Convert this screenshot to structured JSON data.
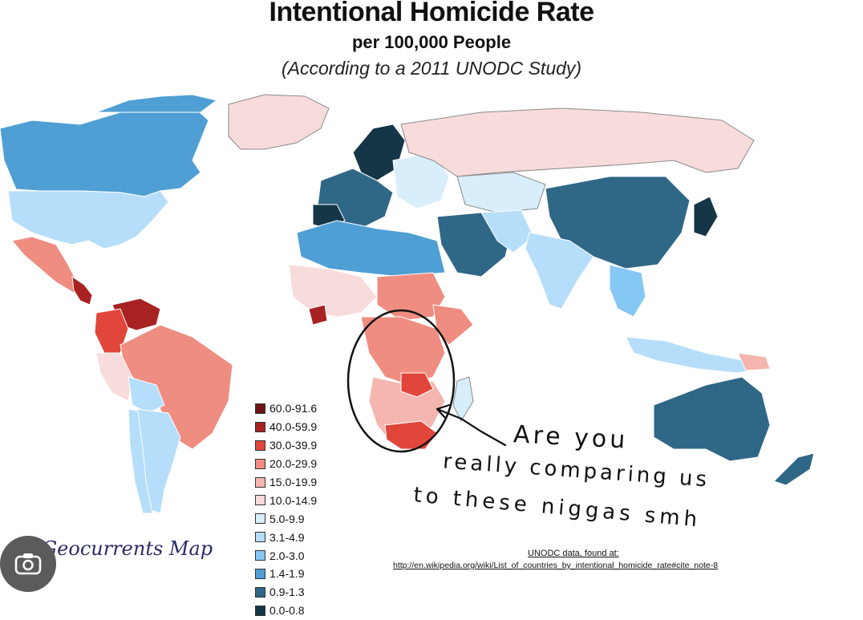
{
  "title": "Intentional Homicide Rate",
  "subtitle": "per 100,000 People",
  "note": "(According to a 2011 UNODC Study)",
  "legend": [
    {
      "label": "60.0-91.6",
      "color": "#6e1212"
    },
    {
      "label": "40.0-59.9",
      "color": "#a82222"
    },
    {
      "label": "30.0-39.9",
      "color": "#e0463a"
    },
    {
      "label": "20.0-29.9",
      "color": "#ee8d80"
    },
    {
      "label": "15.0-19.9",
      "color": "#f4b6ae"
    },
    {
      "label": "10.0-14.9",
      "color": "#f8dcdb"
    },
    {
      "label": "5.0-9.9",
      "color": "#d8eefa"
    },
    {
      "label": "3.1-4.9",
      "color": "#b5defa"
    },
    {
      "label": "2.0-3.0",
      "color": "#86c8f4"
    },
    {
      "label": "1.4-1.9",
      "color": "#4f9fd4"
    },
    {
      "label": "0.9-1.3",
      "color": "#2f6787"
    },
    {
      "label": "0.0-0.8",
      "color": "#143646"
    }
  ],
  "credit": "Geocurrents Map",
  "source_line1": "UNODC data, found at:",
  "source_line2": "http://en.wikipedia.org/wiki/List_of_countries_by_intentional_homicide_rate#cite_note-8",
  "handwriting": {
    "line1": "Are you",
    "line2": "really comparing us",
    "line3": "to these niggas smh"
  },
  "lens_icon": "camera-search-icon"
}
